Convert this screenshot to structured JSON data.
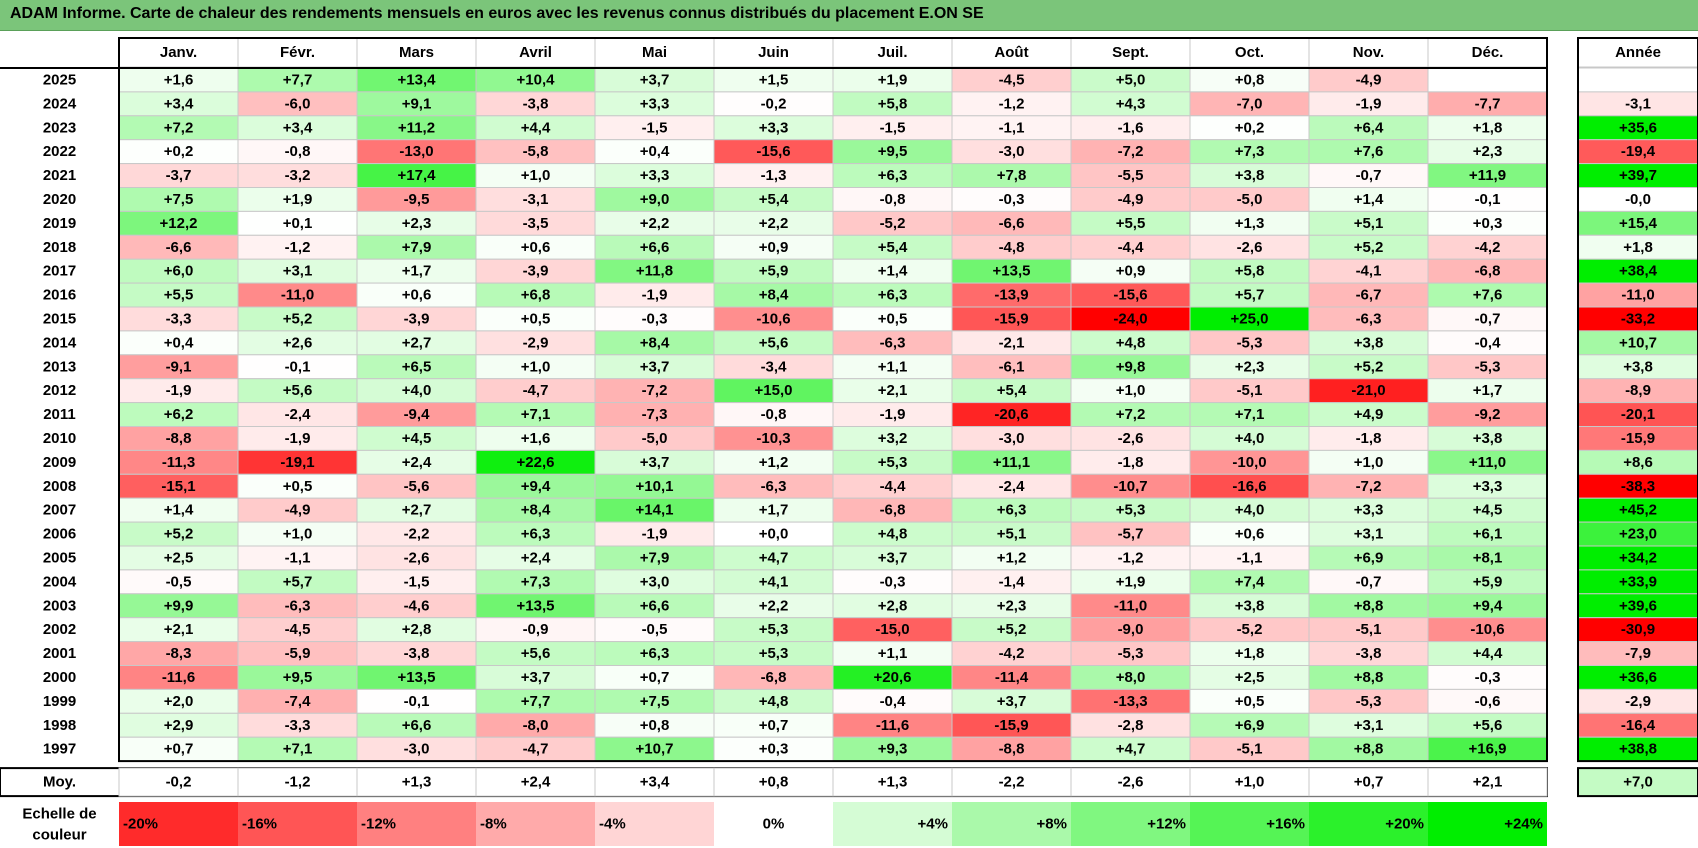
{
  "title": "ADAM Informe. Carte de chaleur des rendements mensuels en euros avec les revenus connus distribués du placement E.ON SE",
  "chart_data": {
    "type": "heatmap",
    "title": "ADAM Informe. Carte de chaleur des rendements mensuels en euros avec les revenus connus distribués du placement E.ON SE",
    "months": [
      "Janv.",
      "Févr.",
      "Mars",
      "Avril",
      "Mai",
      "Juin",
      "Juil.",
      "Août",
      "Sept.",
      "Oct.",
      "Nov.",
      "Déc."
    ],
    "annual_header": "Année",
    "average_label": "Moy.",
    "rows": [
      {
        "year": "2025",
        "values": [
          "+1,6",
          "+7,7",
          "+13,4",
          "+10,4",
          "+3,7",
          "+1,5",
          "+1,9",
          "-4,5",
          "+5,0",
          "+0,8",
          "-4,9",
          ""
        ],
        "annual": ""
      },
      {
        "year": "2024",
        "values": [
          "+3,4",
          "-6,0",
          "+9,1",
          "-3,8",
          "+3,3",
          "-0,2",
          "+5,8",
          "-1,2",
          "+4,3",
          "-7,0",
          "-1,9",
          "-7,7"
        ],
        "annual": "-3,1"
      },
      {
        "year": "2023",
        "values": [
          "+7,2",
          "+3,4",
          "+11,2",
          "+4,4",
          "-1,5",
          "+3,3",
          "-1,5",
          "-1,1",
          "-1,6",
          "+0,2",
          "+6,4",
          "+1,8"
        ],
        "annual": "+35,6"
      },
      {
        "year": "2022",
        "values": [
          "+0,2",
          "-0,8",
          "-13,0",
          "-5,8",
          "+0,4",
          "-15,6",
          "+9,5",
          "-3,0",
          "-7,2",
          "+7,3",
          "+7,6",
          "+2,3"
        ],
        "annual": "-19,4"
      },
      {
        "year": "2021",
        "values": [
          "-3,7",
          "-3,2",
          "+17,4",
          "+1,0",
          "+3,3",
          "-1,3",
          "+6,3",
          "+7,8",
          "-5,5",
          "+3,8",
          "-0,7",
          "+11,9"
        ],
        "annual": "+39,7"
      },
      {
        "year": "2020",
        "values": [
          "+7,5",
          "+1,9",
          "-9,5",
          "-3,1",
          "+9,0",
          "+5,4",
          "-0,8",
          "-0,3",
          "-4,9",
          "-5,0",
          "+1,4",
          "-0,1"
        ],
        "annual": "-0,0"
      },
      {
        "year": "2019",
        "values": [
          "+12,2",
          "+0,1",
          "+2,3",
          "-3,5",
          "+2,2",
          "+2,2",
          "-5,2",
          "-6,6",
          "+5,5",
          "+1,3",
          "+5,1",
          "+0,3"
        ],
        "annual": "+15,4"
      },
      {
        "year": "2018",
        "values": [
          "-6,6",
          "-1,2",
          "+7,9",
          "+0,6",
          "+6,6",
          "+0,9",
          "+5,4",
          "-4,8",
          "-4,4",
          "-2,6",
          "+5,2",
          "-4,2"
        ],
        "annual": "+1,8"
      },
      {
        "year": "2017",
        "values": [
          "+6,0",
          "+3,1",
          "+1,7",
          "-3,9",
          "+11,8",
          "+5,9",
          "+1,4",
          "+13,5",
          "+0,9",
          "+5,8",
          "-4,1",
          "-6,8"
        ],
        "annual": "+38,4"
      },
      {
        "year": "2016",
        "values": [
          "+5,5",
          "-11,0",
          "+0,6",
          "+6,8",
          "-1,9",
          "+8,4",
          "+6,3",
          "-13,9",
          "-15,6",
          "+5,7",
          "-6,7",
          "+7,6"
        ],
        "annual": "-11,0"
      },
      {
        "year": "2015",
        "values": [
          "-3,3",
          "+5,2",
          "-3,9",
          "+0,5",
          "-0,3",
          "-10,6",
          "+0,5",
          "-15,9",
          "-24,0",
          "+25,0",
          "-6,3",
          "-0,7"
        ],
        "annual": "-33,2"
      },
      {
        "year": "2014",
        "values": [
          "+0,4",
          "+2,6",
          "+2,7",
          "-2,9",
          "+8,4",
          "+5,6",
          "-6,3",
          "-2,1",
          "+4,8",
          "-5,3",
          "+3,8",
          "-0,4"
        ],
        "annual": "+10,7"
      },
      {
        "year": "2013",
        "values": [
          "-9,1",
          "-0,1",
          "+6,5",
          "+1,0",
          "+3,7",
          "-3,4",
          "+1,1",
          "-6,1",
          "+9,8",
          "+2,3",
          "+5,2",
          "-5,3"
        ],
        "annual": "+3,8"
      },
      {
        "year": "2012",
        "values": [
          "-1,9",
          "+5,6",
          "+4,0",
          "-4,7",
          "-7,2",
          "+15,0",
          "+2,1",
          "+5,4",
          "+1,0",
          "-5,1",
          "-21,0",
          "+1,7"
        ],
        "annual": "-8,9"
      },
      {
        "year": "2011",
        "values": [
          "+6,2",
          "-2,4",
          "-9,4",
          "+7,1",
          "-7,3",
          "-0,8",
          "-1,9",
          "-20,6",
          "+7,2",
          "+7,1",
          "+4,9",
          "-9,2"
        ],
        "annual": "-20,1"
      },
      {
        "year": "2010",
        "values": [
          "-8,8",
          "-1,9",
          "+4,5",
          "+1,6",
          "-5,0",
          "-10,3",
          "+3,2",
          "-3,0",
          "-2,6",
          "+4,0",
          "-1,8",
          "+3,8"
        ],
        "annual": "-15,9"
      },
      {
        "year": "2009",
        "values": [
          "-11,3",
          "-19,1",
          "+2,4",
          "+22,6",
          "+3,7",
          "+1,2",
          "+5,3",
          "+11,1",
          "-1,8",
          "-10,0",
          "+1,0",
          "+11,0"
        ],
        "annual": "+8,6"
      },
      {
        "year": "2008",
        "values": [
          "-15,1",
          "+0,5",
          "-5,6",
          "+9,4",
          "+10,1",
          "-6,3",
          "-4,4",
          "-2,4",
          "-10,7",
          "-16,6",
          "-7,2",
          "+3,3"
        ],
        "annual": "-38,3"
      },
      {
        "year": "2007",
        "values": [
          "+1,4",
          "-4,9",
          "+2,7",
          "+8,4",
          "+14,1",
          "+1,7",
          "-6,8",
          "+6,3",
          "+5,3",
          "+4,0",
          "+3,3",
          "+4,5"
        ],
        "annual": "+45,2"
      },
      {
        "year": "2006",
        "values": [
          "+5,2",
          "+1,0",
          "-2,2",
          "+6,3",
          "-1,9",
          "+0,0",
          "+4,8",
          "+5,1",
          "-5,7",
          "+0,6",
          "+3,1",
          "+6,1"
        ],
        "annual": "+23,0"
      },
      {
        "year": "2005",
        "values": [
          "+2,5",
          "-1,1",
          "-2,6",
          "+2,4",
          "+7,9",
          "+4,7",
          "+3,7",
          "+1,2",
          "-1,2",
          "-1,1",
          "+6,9",
          "+8,1"
        ],
        "annual": "+34,2"
      },
      {
        "year": "2004",
        "values": [
          "-0,5",
          "+5,7",
          "-1,5",
          "+7,3",
          "+3,0",
          "+4,1",
          "-0,3",
          "-1,4",
          "+1,9",
          "+7,4",
          "-0,7",
          "+5,9"
        ],
        "annual": "+33,9"
      },
      {
        "year": "2003",
        "values": [
          "+9,9",
          "-6,3",
          "-4,6",
          "+13,5",
          "+6,6",
          "+2,2",
          "+2,8",
          "+2,3",
          "-11,0",
          "+3,8",
          "+8,8",
          "+9,4"
        ],
        "annual": "+39,6"
      },
      {
        "year": "2002",
        "values": [
          "+2,1",
          "-4,5",
          "+2,8",
          "-0,9",
          "-0,5",
          "+5,3",
          "-15,0",
          "+5,2",
          "-9,0",
          "-5,2",
          "-5,1",
          "-10,6"
        ],
        "annual": "-30,9"
      },
      {
        "year": "2001",
        "values": [
          "-8,3",
          "-5,9",
          "-3,8",
          "+5,6",
          "+6,3",
          "+5,3",
          "+1,1",
          "-4,2",
          "-5,3",
          "+1,8",
          "-3,8",
          "+4,4"
        ],
        "annual": "-7,9"
      },
      {
        "year": "2000",
        "values": [
          "-11,6",
          "+9,5",
          "+13,5",
          "+3,7",
          "+0,7",
          "-6,8",
          "+20,6",
          "-11,4",
          "+8,0",
          "+2,5",
          "+8,8",
          "-0,3"
        ],
        "annual": "+36,6"
      },
      {
        "year": "1999",
        "values": [
          "+2,0",
          "-7,4",
          "-0,1",
          "+7,7",
          "+7,5",
          "+4,8",
          "-0,4",
          "+3,7",
          "-13,3",
          "+0,5",
          "-5,3",
          "-0,6"
        ],
        "annual": "-2,9"
      },
      {
        "year": "1998",
        "values": [
          "+2,9",
          "-3,3",
          "+6,6",
          "-8,0",
          "+0,8",
          "+0,7",
          "-11,6",
          "-15,9",
          "-2,8",
          "+6,9",
          "+3,1",
          "+5,6"
        ],
        "annual": "-16,4"
      },
      {
        "year": "1997",
        "values": [
          "+0,7",
          "+7,1",
          "-3,0",
          "-4,7",
          "+10,7",
          "+0,3",
          "+9,3",
          "-8,8",
          "+4,7",
          "-5,1",
          "+8,8",
          "+16,9"
        ],
        "annual": "+38,8"
      }
    ],
    "averages": [
      "-0,2",
      "-1,2",
      "+1,3",
      "+2,4",
      "+3,4",
      "+0,8",
      "+1,3",
      "-2,2",
      "-2,6",
      "+1,0",
      "+0,7",
      "+2,1"
    ],
    "average_annual": "+7,0",
    "scale_label": "Echelle de couleur",
    "scale_steps": [
      "-20%",
      "-16%",
      "-12%",
      "-8%",
      "-4%",
      "0%",
      "+4%",
      "+8%",
      "+12%",
      "+16%",
      "+20%",
      "+24%"
    ],
    "colors": {
      "negative_max": "#ff0000",
      "neutral": "#ffffff",
      "positive_max": "#00ee00",
      "title_bar": "#7bc57a",
      "grid": "#c8c8c8"
    }
  }
}
